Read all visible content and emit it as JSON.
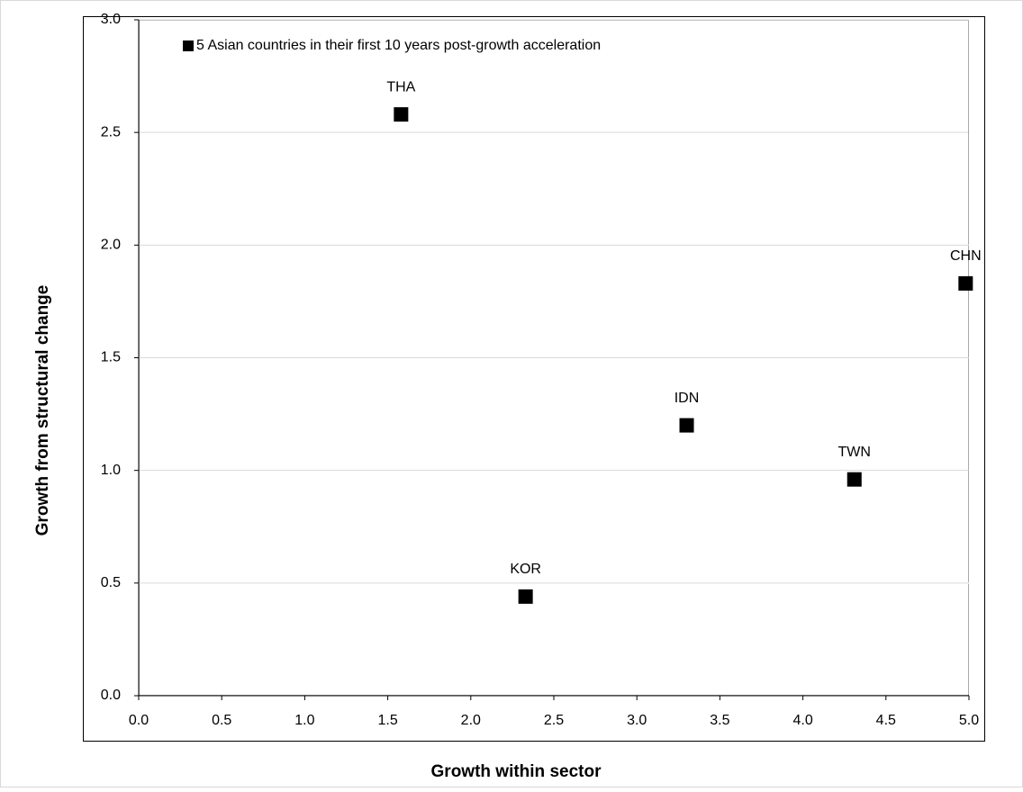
{
  "chart_data": {
    "type": "scatter",
    "xlabel": "Growth within sector",
    "ylabel": "Growth from structural change",
    "series": [
      {
        "name": "5 Asian countries in their first 10 years post-growth acceleration",
        "color": "#000000",
        "x": [
          1.58,
          2.33,
          3.3,
          4.31,
          4.98
        ],
        "values": [
          2.58,
          0.44,
          1.2,
          0.96,
          1.83
        ],
        "point_labels": [
          "THA",
          "KOR",
          "IDN",
          "TWN",
          "CHN"
        ]
      }
    ],
    "xlim": [
      0,
      5
    ],
    "xticks": [
      {
        "value": 0,
        "label": "0.0"
      },
      0.5,
      {
        "value": 1,
        "label": "1.0"
      },
      1.5,
      {
        "value": 2,
        "label": "2.0"
      },
      2.5,
      {
        "value": 3,
        "label": "3.0"
      },
      3.5,
      {
        "value": 4,
        "label": "4.0"
      },
      4.5,
      {
        "value": 5,
        "label": "5.0"
      }
    ],
    "ylim": [
      0,
      3
    ],
    "yticks": [
      {
        "value": 0,
        "label": "0.0"
      },
      0.5,
      {
        "value": 1,
        "label": "1.0"
      },
      1.5,
      {
        "value": 2,
        "label": "2.0"
      },
      2.5,
      {
        "value": 3,
        "label": "3.0"
      }
    ],
    "grid": true,
    "legend": "top-left"
  }
}
